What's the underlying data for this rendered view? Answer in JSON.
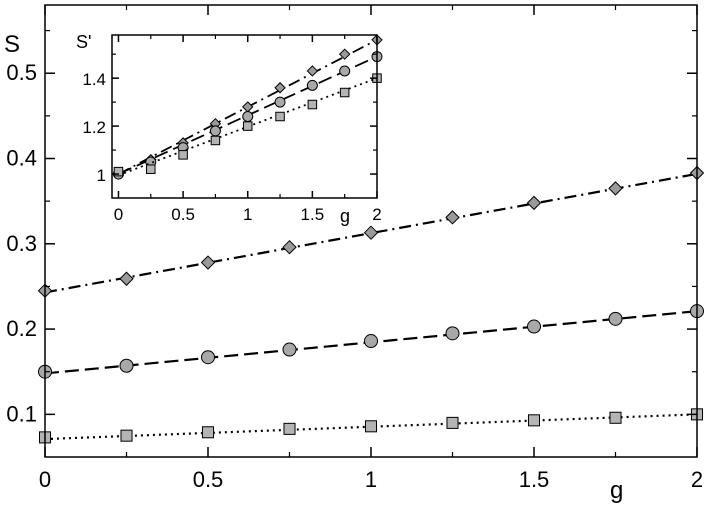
{
  "chart_data": [
    {
      "type": "scatter",
      "xlabel": "g",
      "ylabel": "S",
      "xlim": [
        0,
        2
      ],
      "ylim": [
        0.05,
        0.58
      ],
      "x_ticks": [
        "0",
        "0.5",
        "1",
        "1.5",
        "2"
      ],
      "y_ticks": [
        "0.1",
        "0.2",
        "0.3",
        "0.4",
        "0.5"
      ],
      "grid": false,
      "series": [
        {
          "marker": "diamond",
          "line": "dash-dot",
          "x": [
            0,
            0.25,
            0.5,
            0.75,
            1,
            1.25,
            1.5,
            1.75,
            2
          ],
          "y": [
            0.245,
            0.259,
            0.278,
            0.296,
            0.313,
            0.331,
            0.348,
            0.365,
            0.383
          ],
          "fit": [
            [
              0,
              0.243
            ],
            [
              2,
              0.382
            ]
          ]
        },
        {
          "marker": "circle",
          "line": "dashed",
          "x": [
            0,
            0.25,
            0.5,
            0.75,
            1,
            1.25,
            1.5,
            1.75,
            2
          ],
          "y": [
            0.15,
            0.157,
            0.167,
            0.176,
            0.186,
            0.195,
            0.203,
            0.212,
            0.221
          ],
          "fit": [
            [
              0,
              0.148
            ],
            [
              2,
              0.221
            ]
          ]
        },
        {
          "marker": "square",
          "line": "dotted",
          "x": [
            0,
            0.25,
            0.5,
            0.75,
            1,
            1.25,
            1.5,
            1.75,
            2
          ],
          "y": [
            0.073,
            0.075,
            0.079,
            0.083,
            0.086,
            0.09,
            0.093,
            0.096,
            0.1
          ],
          "fit": [
            [
              0,
              0.071
            ],
            [
              2,
              0.1
            ]
          ]
        }
      ]
    },
    {
      "type": "scatter",
      "xlabel": "g",
      "ylabel": "S'",
      "xlim": [
        -0.05,
        2
      ],
      "ylim": [
        0.9,
        1.58
      ],
      "x_ticks": [
        "0",
        "0.5",
        "1",
        "1.5",
        "2"
      ],
      "y_ticks": [
        "1",
        "1.2",
        "1.4"
      ],
      "grid": false,
      "series": [
        {
          "marker": "diamond",
          "line": "dash-dot",
          "x": [
            0,
            0.25,
            0.5,
            0.75,
            1,
            1.25,
            1.5,
            1.75,
            2
          ],
          "y": [
            1.0,
            1.06,
            1.13,
            1.21,
            1.28,
            1.36,
            1.43,
            1.5,
            1.56
          ],
          "fit": [
            [
              0,
              1.0
            ],
            [
              2,
              1.56
            ]
          ]
        },
        {
          "marker": "circle",
          "line": "dashed",
          "x": [
            0,
            0.25,
            0.5,
            0.75,
            1,
            1.25,
            1.5,
            1.75,
            2
          ],
          "y": [
            1.0,
            1.05,
            1.11,
            1.18,
            1.24,
            1.3,
            1.37,
            1.43,
            1.49
          ],
          "fit": [
            [
              0,
              1.0
            ],
            [
              2,
              1.49
            ]
          ]
        },
        {
          "marker": "square",
          "line": "dotted",
          "x": [
            0,
            0.25,
            0.5,
            0.75,
            1,
            1.25,
            1.5,
            1.75,
            2
          ],
          "y": [
            1.01,
            1.02,
            1.08,
            1.14,
            1.2,
            1.24,
            1.29,
            1.34,
            1.4
          ],
          "fit": [
            [
              0,
              0.995
            ],
            [
              2,
              1.4
            ]
          ]
        }
      ]
    }
  ]
}
